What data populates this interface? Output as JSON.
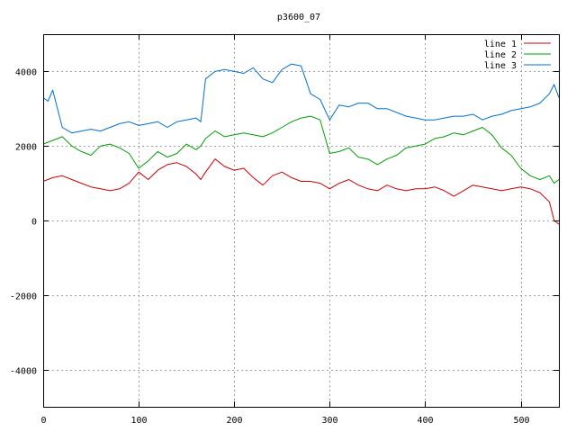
{
  "chart_data": {
    "type": "line",
    "title": "p3600_07",
    "xlabel": "",
    "ylabel": "",
    "xlim": [
      0,
      540
    ],
    "ylim": [
      -5000,
      5000
    ],
    "x_ticks": [
      0,
      100,
      200,
      300,
      400,
      500
    ],
    "y_ticks": [
      -4000,
      -2000,
      0,
      2000,
      4000
    ],
    "grid": true,
    "legend_position": "top-right",
    "colors": {
      "line 1": "#cc0000",
      "line 2": "#00a000",
      "line 3": "#0070d0"
    },
    "series": [
      {
        "name": "line 1",
        "x": [
          0,
          10,
          20,
          30,
          40,
          50,
          60,
          70,
          80,
          90,
          100,
          110,
          120,
          130,
          140,
          150,
          160,
          165,
          170,
          180,
          190,
          200,
          210,
          220,
          230,
          240,
          250,
          260,
          270,
          280,
          290,
          300,
          310,
          320,
          330,
          340,
          350,
          360,
          370,
          380,
          390,
          400,
          410,
          420,
          430,
          440,
          450,
          460,
          470,
          480,
          490,
          500,
          510,
          520,
          530,
          535,
          540
        ],
        "y": [
          1050,
          1150,
          1200,
          1100,
          1000,
          900,
          850,
          800,
          850,
          1000,
          1300,
          1100,
          1350,
          1500,
          1550,
          1450,
          1250,
          1100,
          1300,
          1650,
          1450,
          1350,
          1400,
          1150,
          950,
          1200,
          1300,
          1150,
          1050,
          1050,
          1000,
          850,
          1000,
          1100,
          950,
          850,
          800,
          950,
          850,
          800,
          850,
          850,
          900,
          800,
          650,
          800,
          950,
          900,
          850,
          800,
          850,
          900,
          850,
          750,
          500,
          0,
          -100
        ]
      },
      {
        "name": "line 2",
        "x": [
          0,
          10,
          20,
          30,
          40,
          50,
          60,
          70,
          80,
          90,
          100,
          110,
          120,
          130,
          140,
          150,
          160,
          165,
          170,
          180,
          190,
          200,
          210,
          220,
          230,
          240,
          250,
          260,
          270,
          280,
          290,
          300,
          310,
          320,
          330,
          340,
          350,
          360,
          370,
          380,
          390,
          400,
          410,
          420,
          430,
          440,
          450,
          460,
          470,
          480,
          490,
          500,
          510,
          520,
          530,
          535,
          540
        ],
        "y": [
          2050,
          2150,
          2250,
          2000,
          1850,
          1750,
          2000,
          2050,
          1950,
          1800,
          1400,
          1600,
          1850,
          1700,
          1800,
          2050,
          1900,
          2000,
          2200,
          2400,
          2250,
          2300,
          2350,
          2300,
          2250,
          2350,
          2500,
          2650,
          2750,
          2800,
          2700,
          1800,
          1850,
          1950,
          1700,
          1650,
          1500,
          1650,
          1750,
          1950,
          2000,
          2050,
          2200,
          2250,
          2350,
          2300,
          2400,
          2500,
          2300,
          1950,
          1750,
          1400,
          1200,
          1100,
          1200,
          1000,
          1100
        ]
      },
      {
        "name": "line 3",
        "x": [
          0,
          5,
          10,
          20,
          30,
          40,
          50,
          60,
          70,
          80,
          90,
          100,
          110,
          120,
          130,
          140,
          150,
          160,
          165,
          170,
          180,
          190,
          200,
          210,
          220,
          230,
          240,
          250,
          260,
          270,
          280,
          290,
          300,
          310,
          320,
          330,
          340,
          350,
          360,
          370,
          380,
          390,
          400,
          410,
          420,
          430,
          440,
          450,
          460,
          470,
          480,
          490,
          500,
          510,
          520,
          530,
          535,
          540
        ],
        "y": [
          3300,
          3200,
          3500,
          2500,
          2350,
          2400,
          2450,
          2400,
          2500,
          2600,
          2650,
          2550,
          2600,
          2650,
          2500,
          2650,
          2700,
          2750,
          2650,
          3800,
          4000,
          4050,
          4000,
          3950,
          4100,
          3800,
          3700,
          4050,
          4200,
          4150,
          3400,
          3250,
          2700,
          3100,
          3050,
          3150,
          3150,
          3000,
          3000,
          2900,
          2800,
          2750,
          2700,
          2700,
          2750,
          2800,
          2800,
          2850,
          2700,
          2800,
          2850,
          2950,
          3000,
          3050,
          3150,
          3400,
          3650,
          3300
        ]
      }
    ]
  }
}
